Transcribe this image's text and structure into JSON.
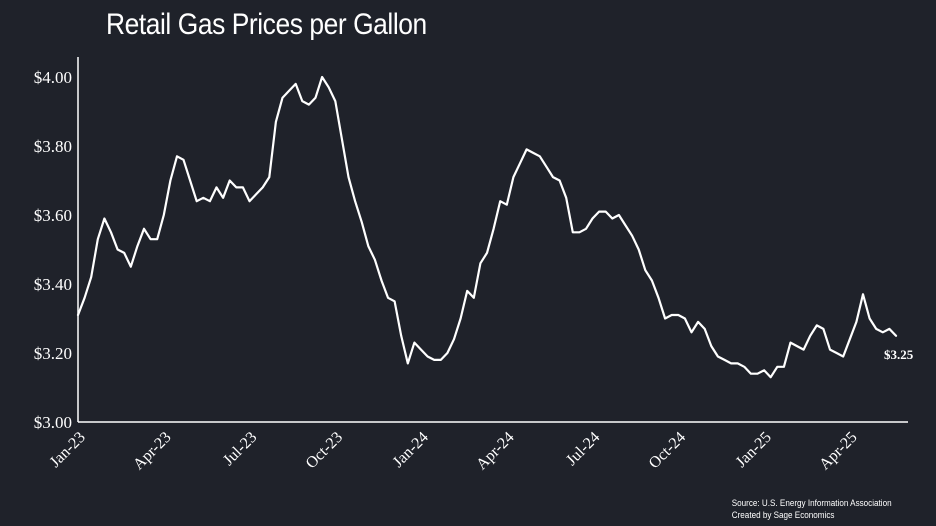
{
  "chart_data": {
    "type": "line",
    "title": "Retail Gas Prices per Gallon",
    "xlabel": "",
    "ylabel": "",
    "ylim": [
      3.0,
      4.0
    ],
    "yticks": [
      3.0,
      3.2,
      3.4,
      3.6,
      3.8,
      4.0
    ],
    "ytick_labels": [
      "$3.00",
      "$3.20",
      "$3.40",
      "$3.60",
      "$3.80",
      "$4.00"
    ],
    "xtick_labels": [
      "Jan-23",
      "Apr-23",
      "Jul-23",
      "Oct-23",
      "Jan-24",
      "Apr-24",
      "Jul-24",
      "Oct-24",
      "Jan-25",
      "Apr-25"
    ],
    "xtick_index": [
      0,
      13,
      26,
      39,
      52,
      65,
      78,
      91,
      104,
      117
    ],
    "series": [
      {
        "name": "Retail Gas Price",
        "color": "#ffffff",
        "values": [
          3.31,
          3.36,
          3.42,
          3.53,
          3.59,
          3.55,
          3.5,
          3.49,
          3.45,
          3.51,
          3.56,
          3.53,
          3.53,
          3.6,
          3.7,
          3.77,
          3.76,
          3.7,
          3.64,
          3.65,
          3.64,
          3.68,
          3.65,
          3.7,
          3.68,
          3.68,
          3.64,
          3.66,
          3.68,
          3.71,
          3.87,
          3.94,
          3.96,
          3.98,
          3.93,
          3.92,
          3.94,
          4.0,
          3.97,
          3.93,
          3.82,
          3.71,
          3.64,
          3.58,
          3.51,
          3.47,
          3.41,
          3.36,
          3.35,
          3.25,
          3.17,
          3.23,
          3.21,
          3.19,
          3.18,
          3.18,
          3.2,
          3.24,
          3.3,
          3.38,
          3.36,
          3.46,
          3.49,
          3.56,
          3.64,
          3.63,
          3.71,
          3.75,
          3.79,
          3.78,
          3.77,
          3.74,
          3.71,
          3.7,
          3.65,
          3.55,
          3.55,
          3.56,
          3.59,
          3.61,
          3.61,
          3.59,
          3.6,
          3.57,
          3.54,
          3.5,
          3.44,
          3.41,
          3.36,
          3.3,
          3.31,
          3.31,
          3.3,
          3.26,
          3.29,
          3.27,
          3.22,
          3.19,
          3.18,
          3.17,
          3.17,
          3.16,
          3.14,
          3.14,
          3.15,
          3.13,
          3.16,
          3.16,
          3.23,
          3.22,
          3.21,
          3.25,
          3.28,
          3.27,
          3.21,
          3.2,
          3.19,
          3.24,
          3.29,
          3.37,
          3.3,
          3.27,
          3.26,
          3.27,
          3.25
        ]
      }
    ],
    "end_label": "$3.25",
    "grid": false,
    "legend": "none"
  },
  "source": {
    "line1": "Source: U.S. Energy Information Association",
    "line2": "Created by Sage Economics"
  },
  "colors": {
    "background": "#1f222a",
    "line": "#ffffff",
    "text": "#ffffff"
  }
}
